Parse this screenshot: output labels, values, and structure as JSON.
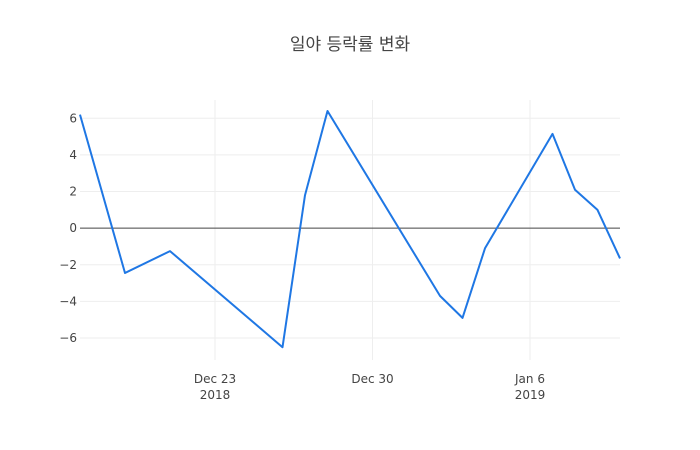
{
  "chart_data": {
    "type": "line",
    "title": "일야 등락률 변화",
    "xlabel": "",
    "ylabel": "",
    "ylim": [
      -7.2,
      7.0
    ],
    "xlim": [
      "2018-12-17",
      "2019-01-10"
    ],
    "grid": true,
    "zero_line": true,
    "x_ticks": [
      {
        "date": "2018-12-23",
        "label": "Dec 23",
        "sublabel": "2018"
      },
      {
        "date": "2018-12-30",
        "label": "Dec 30",
        "sublabel": ""
      },
      {
        "date": "2019-01-06",
        "label": "Jan 6",
        "sublabel": "2019"
      }
    ],
    "y_ticks": [
      {
        "value": 6,
        "label": "6"
      },
      {
        "value": 4,
        "label": "4"
      },
      {
        "value": 2,
        "label": "2"
      },
      {
        "value": 0,
        "label": "0"
      },
      {
        "value": -2,
        "label": "−2"
      },
      {
        "value": -4,
        "label": "−4"
      },
      {
        "value": -6,
        "label": "−6"
      }
    ],
    "series": [
      {
        "color": "#1f77e4",
        "points": [
          {
            "x": "2018-12-17",
            "y": 6.2
          },
          {
            "x": "2018-12-19",
            "y": -2.45
          },
          {
            "x": "2018-12-21",
            "y": -1.25
          },
          {
            "x": "2018-12-26",
            "y": -6.5
          },
          {
            "x": "2018-12-27",
            "y": 1.8
          },
          {
            "x": "2018-12-28",
            "y": 6.4
          },
          {
            "x": "2019-01-02",
            "y": -3.7
          },
          {
            "x": "2019-01-03",
            "y": -4.9
          },
          {
            "x": "2019-01-04",
            "y": -1.1
          },
          {
            "x": "2019-01-07",
            "y": 5.15
          },
          {
            "x": "2019-01-08",
            "y": 2.1
          },
          {
            "x": "2019-01-09",
            "y": 1.0
          },
          {
            "x": "2019-01-10",
            "y": -1.65
          }
        ]
      }
    ]
  }
}
